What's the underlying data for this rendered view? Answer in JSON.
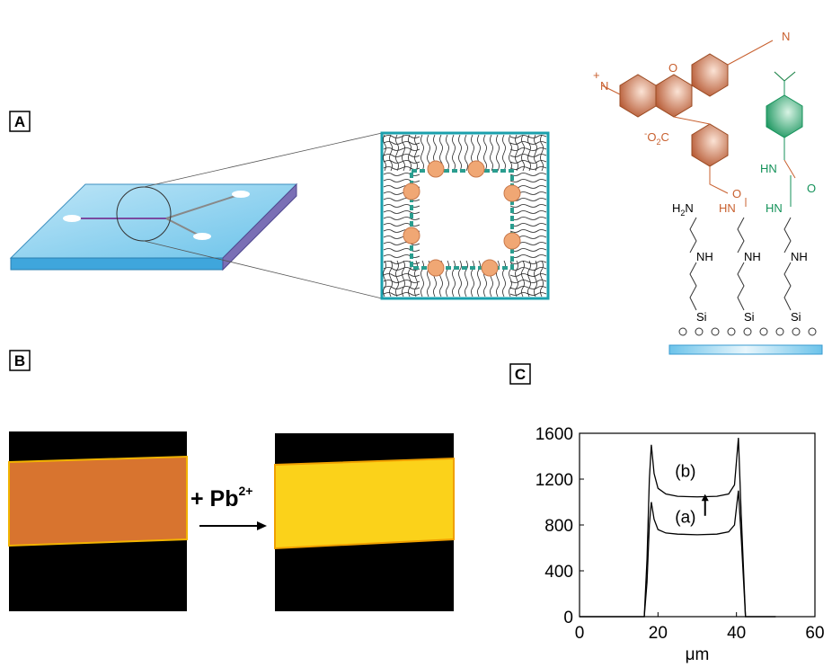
{
  "panels": {
    "a": {
      "label": "A"
    },
    "b": {
      "label": "B",
      "annotation": "+ Pb",
      "annotation_superscript": "2+"
    },
    "c": {
      "label": "C"
    }
  },
  "chemistry": {
    "amine_n": "N",
    "iminium_n": "N",
    "iminium_charge": "+",
    "ring_o": "O",
    "carboxylate": {
      "charge": "-",
      "o": "O",
      "sub": "2",
      "c": "C"
    },
    "amide_o": "O",
    "amide_hn": "HN",
    "urea_hn_top": "HN",
    "urea_o": "O",
    "urea_hn_bottom": "HN",
    "amine_h": "H",
    "amine_sub": "2",
    "amine_end_n": "N",
    "nh": [
      "NH",
      "NH",
      "NH"
    ],
    "si": [
      "Si",
      "Si",
      "Si"
    ]
  },
  "chart_data": {
    "type": "line",
    "x_label": "μm",
    "x": [
      0,
      16.5,
      17.2,
      17.8,
      18.3,
      19,
      20,
      22,
      25,
      30,
      35,
      38,
      39.5,
      40.5,
      41.2,
      42.3,
      50
    ],
    "series": [
      {
        "color": "#000000",
        "values": [
          0,
          0,
          300,
          800,
          1000,
          850,
          760,
          730,
          720,
          715,
          720,
          740,
          800,
          1100,
          700,
          0,
          0
        ]
      },
      {
        "color": "#000000",
        "values": [
          0,
          0,
          500,
          1200,
          1500,
          1250,
          1120,
          1070,
          1050,
          1045,
          1050,
          1070,
          1150,
          1560,
          900,
          0,
          0
        ]
      }
    ],
    "annotations": [
      "(a)",
      "(b)"
    ],
    "xlim": [
      0,
      60
    ],
    "xticks": [
      0,
      20,
      40,
      60
    ],
    "ylim": [
      0,
      1600
    ],
    "yticks": [
      0,
      400,
      800,
      1200,
      1600
    ]
  }
}
